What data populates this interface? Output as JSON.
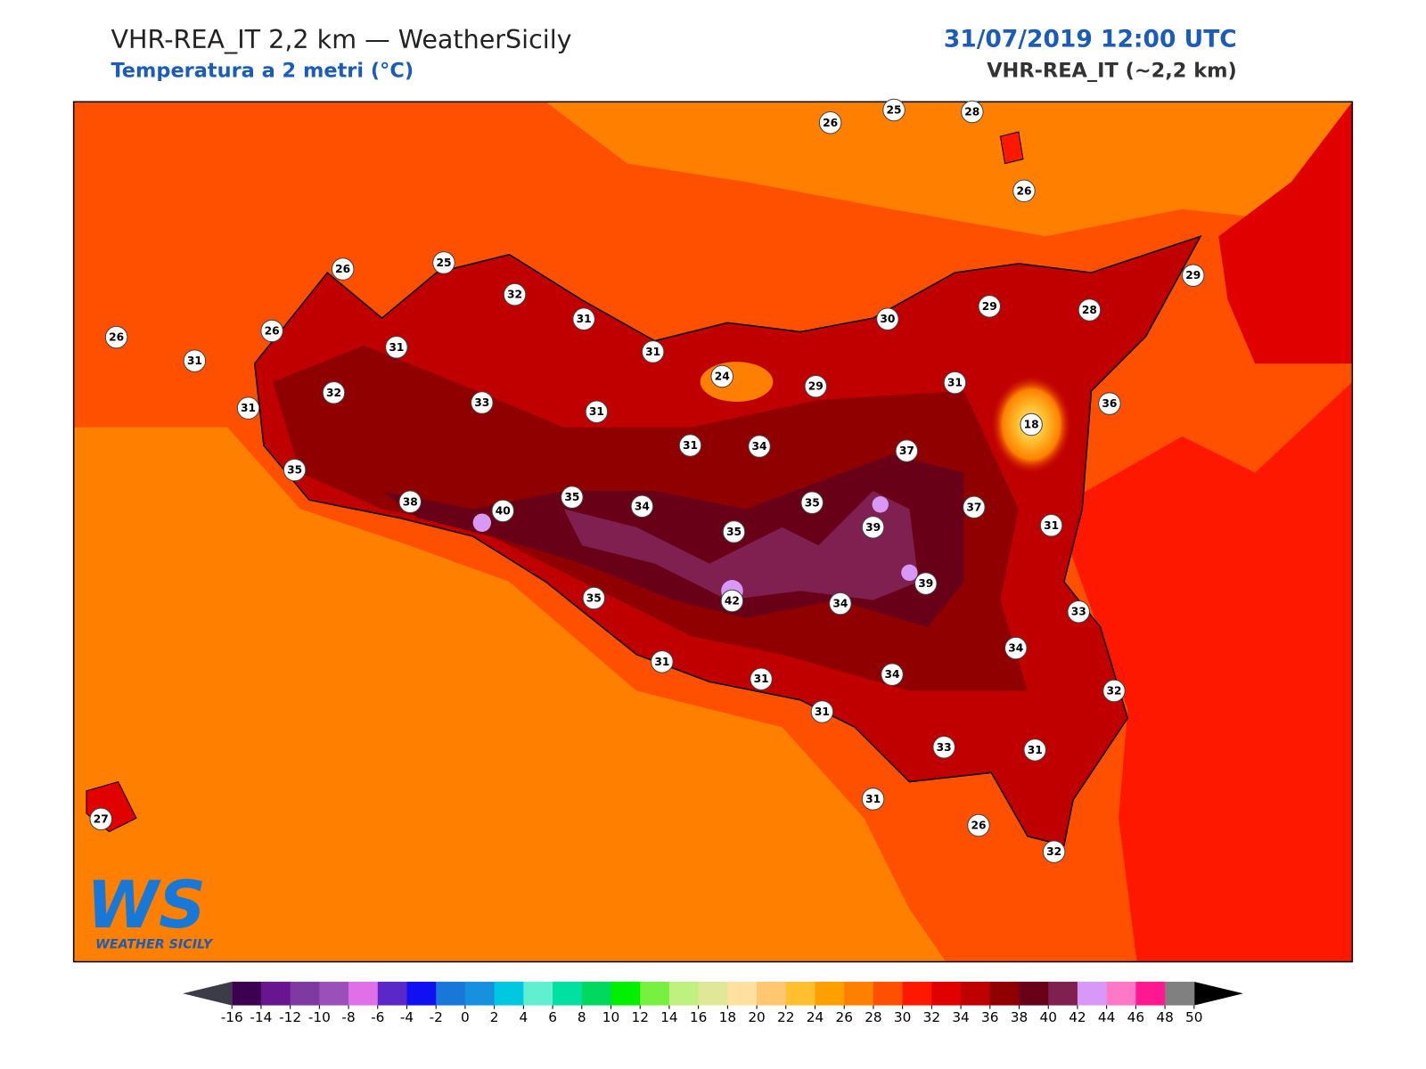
{
  "header": {
    "title": "VHR-REA_IT 2,2 km — WeatherSicily",
    "subtitle": "Temperatura a 2 metri (°C)",
    "datetime": "31/07/2019 12:00 UTC",
    "model": "VHR-REA_IT (~2,2 km)"
  },
  "stations": [
    26,
    25,
    28,
    26,
    26,
    25,
    32,
    31,
    26,
    31,
    26,
    31,
    31,
    30,
    29,
    28,
    29,
    31,
    32,
    33,
    24,
    29,
    31,
    31,
    18,
    36,
    31,
    34,
    37,
    35,
    38,
    40,
    35,
    34,
    35,
    37,
    35,
    39,
    31,
    39,
    35,
    42,
    34,
    33,
    34,
    31,
    31,
    34,
    32,
    31,
    33,
    31,
    27,
    31,
    26,
    32
  ],
  "colorbar": {
    "ticks": [
      -16,
      -14,
      -12,
      -10,
      -8,
      -6,
      -4,
      -2,
      0,
      2,
      4,
      6,
      8,
      10,
      12,
      14,
      16,
      18,
      20,
      22,
      24,
      26,
      28,
      30,
      32,
      34,
      36,
      38,
      40,
      42,
      44,
      46,
      48,
      50
    ],
    "colors": [
      "#3c0050",
      "#6a1590",
      "#7e3aa0",
      "#9a50b8",
      "#e070e8",
      "#5a28c8",
      "#1010f0",
      "#1878d8",
      "#1890e0",
      "#00c8e0",
      "#60f0d0",
      "#00e0a0",
      "#00d860",
      "#00f000",
      "#78f040",
      "#c0f080",
      "#e0e898",
      "#ffe0a0",
      "#ffc870",
      "#ffc030",
      "#ffa000",
      "#ff8000",
      "#ff5000",
      "#ff1800",
      "#e00000",
      "#c00000",
      "#900000",
      "#680018",
      "#802050",
      "#d898f8",
      "#ff78c8",
      "#ff1890",
      "#808080"
    ],
    "under_color": "#3c3c48",
    "over_color": "#000000"
  },
  "logo": {
    "mark": "WS",
    "text": "WEATHER SICILY"
  }
}
